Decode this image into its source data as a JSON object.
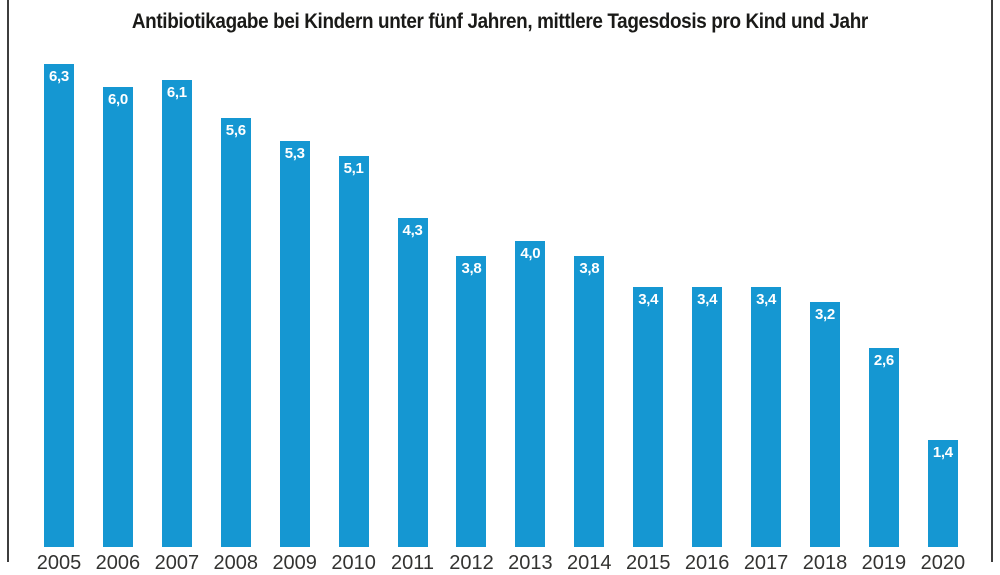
{
  "chart_data": {
    "type": "bar",
    "title": "Antibiotikagabe bei Kindern unter fünf Jahren, mittlere Tagesdosis pro Kind und Jahr",
    "categories": [
      "2005",
      "2006",
      "2007",
      "2008",
      "2009",
      "2010",
      "2011",
      "2012",
      "2013",
      "2014",
      "2015",
      "2016",
      "2017",
      "2018",
      "2019",
      "2020"
    ],
    "values": [
      6.3,
      6.0,
      6.1,
      5.6,
      5.3,
      5.1,
      4.3,
      3.8,
      4.0,
      3.8,
      3.4,
      3.4,
      3.4,
      3.2,
      2.6,
      1.4
    ],
    "value_labels": [
      "6,3",
      "6,0",
      "6,1",
      "5,6",
      "5,3",
      "5,1",
      "4,3",
      "3,8",
      "4,0",
      "3,8",
      "3,4",
      "3,4",
      "3,4",
      "3,2",
      "2,6",
      "1,4"
    ],
    "xlabel": "",
    "ylabel": "",
    "ylim": [
      0,
      6.6
    ],
    "grid": false,
    "legend": false,
    "bar_color": "#1597d2",
    "value_label_color": "#ffffff",
    "axis_text_color": "#333331",
    "frame_color": "#3e3e3e"
  }
}
